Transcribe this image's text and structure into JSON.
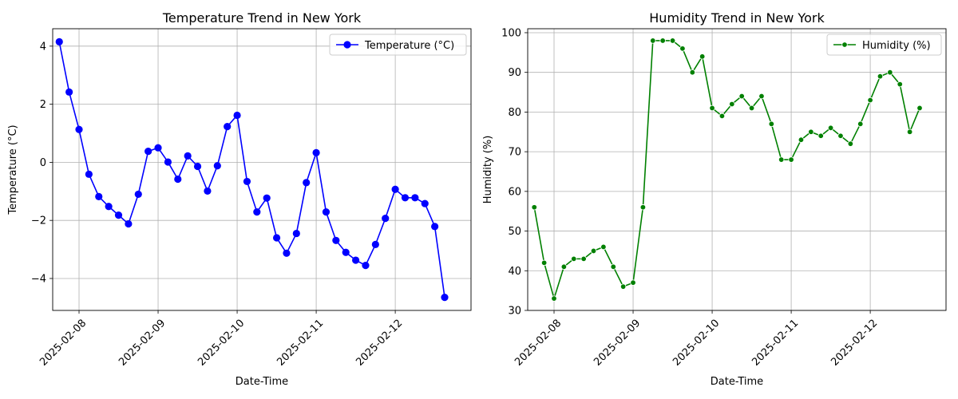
{
  "chart_data": [
    {
      "type": "line",
      "title": "Temperature Trend in New York",
      "xlabel": "Date-Time",
      "ylabel": "Temperature (°C)",
      "x_ticks": [
        "2025-02-08",
        "2025-02-09",
        "2025-02-10",
        "2025-02-11",
        "2025-02-12"
      ],
      "y_ticks": [
        "−4",
        "−2",
        "0",
        "2",
        "4"
      ],
      "ylim": [
        -5.1,
        4.6
      ],
      "grid": true,
      "legend_position": "top-right",
      "series": [
        {
          "name": "Temperature (°C)",
          "color": "#0000ff",
          "marker": "circle-large",
          "x": [
            "2025-02-07 18:00",
            "2025-02-07 21:00",
            "2025-02-08 00:00",
            "2025-02-08 03:00",
            "2025-02-08 06:00",
            "2025-02-08 09:00",
            "2025-02-08 12:00",
            "2025-02-08 15:00",
            "2025-02-08 18:00",
            "2025-02-08 21:00",
            "2025-02-09 00:00",
            "2025-02-09 03:00",
            "2025-02-09 06:00",
            "2025-02-09 09:00",
            "2025-02-09 12:00",
            "2025-02-09 15:00",
            "2025-02-09 18:00",
            "2025-02-09 21:00",
            "2025-02-10 00:00",
            "2025-02-10 03:00",
            "2025-02-10 06:00",
            "2025-02-10 09:00",
            "2025-02-10 12:00",
            "2025-02-10 15:00",
            "2025-02-10 18:00",
            "2025-02-10 21:00",
            "2025-02-11 00:00",
            "2025-02-11 03:00",
            "2025-02-11 06:00",
            "2025-02-11 09:00",
            "2025-02-11 12:00",
            "2025-02-11 15:00",
            "2025-02-11 18:00",
            "2025-02-11 21:00",
            "2025-02-12 00:00",
            "2025-02-12 03:00",
            "2025-02-12 06:00",
            "2025-02-12 09:00",
            "2025-02-12 12:00",
            "2025-02-12 15:00"
          ],
          "values": [
            4.15,
            2.42,
            1.13,
            -0.41,
            -1.18,
            -1.52,
            -1.82,
            -2.12,
            -1.1,
            0.38,
            0.5,
            0.01,
            -0.58,
            0.22,
            -0.14,
            -0.99,
            -0.12,
            1.23,
            1.62,
            -0.66,
            -1.71,
            -1.23,
            -2.6,
            -3.13,
            -2.45,
            -0.7,
            0.33,
            -1.71,
            -2.69,
            -3.1,
            -3.37,
            -3.55,
            -2.83,
            -1.93,
            -0.93,
            -1.22,
            -1.22,
            -1.42,
            -2.21,
            -4.65
          ]
        }
      ]
    },
    {
      "type": "line",
      "title": "Humidity Trend in New York",
      "xlabel": "Date-Time",
      "ylabel": "Humidity (%)",
      "x_ticks": [
        "2025-02-08",
        "2025-02-09",
        "2025-02-10",
        "2025-02-11",
        "2025-02-12"
      ],
      "y_ticks": [
        "30",
        "40",
        "50",
        "60",
        "70",
        "80",
        "90",
        "100"
      ],
      "ylim": [
        30,
        101
      ],
      "grid": true,
      "legend_position": "top-right",
      "series": [
        {
          "name": "Humidity (%)",
          "color": "#008000",
          "marker": "circle-small",
          "x": [
            "2025-02-07 18:00",
            "2025-02-07 21:00",
            "2025-02-08 00:00",
            "2025-02-08 03:00",
            "2025-02-08 06:00",
            "2025-02-08 09:00",
            "2025-02-08 12:00",
            "2025-02-08 15:00",
            "2025-02-08 18:00",
            "2025-02-08 21:00",
            "2025-02-09 00:00",
            "2025-02-09 03:00",
            "2025-02-09 06:00",
            "2025-02-09 09:00",
            "2025-02-09 12:00",
            "2025-02-09 15:00",
            "2025-02-09 18:00",
            "2025-02-09 21:00",
            "2025-02-10 00:00",
            "2025-02-10 03:00",
            "2025-02-10 06:00",
            "2025-02-10 09:00",
            "2025-02-10 12:00",
            "2025-02-10 15:00",
            "2025-02-10 18:00",
            "2025-02-10 21:00",
            "2025-02-11 00:00",
            "2025-02-11 03:00",
            "2025-02-11 06:00",
            "2025-02-11 09:00",
            "2025-02-11 12:00",
            "2025-02-11 15:00",
            "2025-02-11 18:00",
            "2025-02-11 21:00",
            "2025-02-12 00:00",
            "2025-02-12 03:00",
            "2025-02-12 06:00",
            "2025-02-12 09:00",
            "2025-02-12 12:00",
            "2025-02-12 15:00"
          ],
          "values": [
            56,
            42,
            33,
            41,
            43,
            43,
            45,
            46,
            41,
            36,
            37,
            56,
            98,
            98,
            98,
            96,
            90,
            94,
            81,
            79,
            82,
            84,
            81,
            84,
            77,
            68,
            68,
            73,
            75,
            74,
            76,
            74,
            72,
            77,
            83,
            89,
            90,
            87,
            75,
            81
          ]
        }
      ]
    }
  ]
}
